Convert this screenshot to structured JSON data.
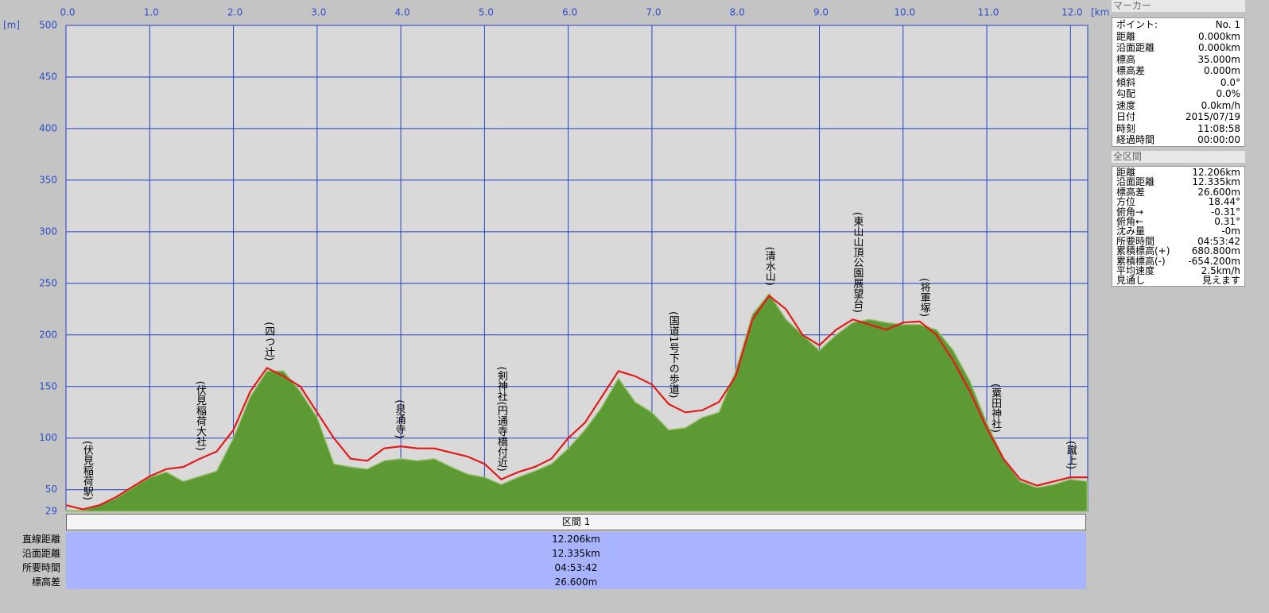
{
  "chart_data": {
    "type": "area",
    "y_unit": "[m]",
    "x_unit": "[km]",
    "x": [
      0,
      0.2,
      0.4,
      0.6,
      0.8,
      1.0,
      1.2,
      1.4,
      1.6,
      1.8,
      2.0,
      2.2,
      2.4,
      2.6,
      2.8,
      3.0,
      3.2,
      3.4,
      3.6,
      3.8,
      4.0,
      4.2,
      4.4,
      4.6,
      4.8,
      5.0,
      5.2,
      5.4,
      5.6,
      5.8,
      6.0,
      6.2,
      6.4,
      6.6,
      6.8,
      7.0,
      7.2,
      7.4,
      7.6,
      7.8,
      8.0,
      8.2,
      8.4,
      8.6,
      8.8,
      9.0,
      9.2,
      9.4,
      9.6,
      9.8,
      10.0,
      10.2,
      10.4,
      10.6,
      10.8,
      11.0,
      11.2,
      11.4,
      11.6,
      11.8,
      12.0,
      12.2
    ],
    "series": [
      {
        "color": "#5e9a34",
        "values": [
          30,
          30,
          35,
          42,
          52,
          62,
          67,
          58,
          63,
          68,
          100,
          140,
          165,
          165,
          145,
          120,
          75,
          72,
          70,
          78,
          80,
          78,
          80,
          72,
          65,
          62,
          55,
          62,
          68,
          75,
          90,
          108,
          130,
          158,
          135,
          125,
          108,
          110,
          120,
          125,
          165,
          220,
          240,
          215,
          200,
          185,
          200,
          212,
          215,
          212,
          210,
          210,
          205,
          185,
          155,
          115,
          80,
          58,
          52,
          55,
          60,
          58
        ]
      },
      {
        "color": "#e41a1a",
        "values": [
          35,
          31,
          35,
          43,
          53,
          63,
          70,
          72,
          80,
          87,
          108,
          145,
          168,
          160,
          150,
          125,
          100,
          80,
          78,
          90,
          92,
          90,
          90,
          86,
          82,
          75,
          60,
          67,
          72,
          80,
          100,
          115,
          140,
          165,
          160,
          152,
          133,
          125,
          127,
          135,
          160,
          215,
          238,
          225,
          200,
          190,
          205,
          215,
          210,
          205,
          212,
          213,
          200,
          175,
          145,
          110,
          80,
          60,
          54,
          58,
          62,
          62
        ]
      }
    ],
    "annotations": [
      {
        "text": "(伏見稲荷駅)",
        "x": 0.25
      },
      {
        "text": "(伏見稲荷大社)",
        "x": 1.6
      },
      {
        "text": "(四つ辻)",
        "x": 2.42
      },
      {
        "text": "(泉涌寺)",
        "x": 3.98
      },
      {
        "text": "(剣神社(円通寺橋付近)",
        "x": 5.2
      },
      {
        "text": "(国道1号下の歩道)",
        "x": 7.25
      },
      {
        "text": "(清水山)",
        "x": 8.4
      },
      {
        "text": "(東山山頂公園展望台)",
        "x": 9.45
      },
      {
        "text": "(将軍塚)",
        "x": 10.25
      },
      {
        "text": "(粟田神社)",
        "x": 11.1
      },
      {
        "text": "(蹴上)",
        "x": 12.0
      }
    ],
    "xlim": [
      0,
      12.206
    ],
    "ylim": [
      29,
      500
    ],
    "xticks": [
      {
        "value": 0,
        "label": "0.0"
      },
      {
        "value": 1,
        "label": "1.0"
      },
      {
        "value": 2,
        "label": "2.0"
      },
      {
        "value": 3,
        "label": "3.0"
      },
      {
        "value": 4,
        "label": "4.0"
      },
      {
        "value": 5,
        "label": "5.0"
      },
      {
        "value": 6,
        "label": "6.0"
      },
      {
        "value": 7,
        "label": "7.0"
      },
      {
        "value": 8,
        "label": "8.0"
      },
      {
        "value": 9,
        "label": "9.0"
      },
      {
        "value": 10,
        "label": "10.0"
      },
      {
        "value": 11,
        "label": "11.0"
      },
      {
        "value": 12,
        "label": "12.0"
      }
    ],
    "yticks": [
      29,
      50,
      100,
      150,
      200,
      250,
      300,
      350,
      400,
      450,
      500
    ],
    "grid": true
  },
  "marker": {
    "title": "マーカー",
    "rows": [
      [
        "ポイント:",
        "No. 1"
      ],
      [
        "距離",
        "0.000km"
      ],
      [
        "沿面距離",
        "0.000km"
      ],
      [
        "標高",
        "35.000m"
      ],
      [
        "標高差",
        "0.000m"
      ],
      [
        "傾斜",
        "0.0°"
      ],
      [
        "勾配",
        "0.0%"
      ],
      [
        "速度",
        "0.0km/h"
      ],
      [
        "日付",
        "2015/07/19"
      ],
      [
        "時刻",
        "11:08:58"
      ],
      [
        "経過時間",
        "00:00:00"
      ]
    ]
  },
  "total": {
    "title": "全区間",
    "rows": [
      [
        "距離",
        "12.206km"
      ],
      [
        "沿面距離",
        "12.335km"
      ],
      [
        "標高差",
        "26.600m"
      ],
      [
        "方位",
        "18.44°"
      ],
      [
        "俯角→",
        "-0.31°"
      ],
      [
        "俯角←",
        "0.31°"
      ],
      [
        "沈み量",
        "-0m"
      ],
      [
        "所要時間",
        "04:53:42"
      ],
      [
        "累積標高(+)",
        "680.800m"
      ],
      [
        "累積標高(-)",
        "-654.200m"
      ],
      [
        "平均速度",
        "2.5km/h"
      ],
      [
        "見通し",
        "見えます"
      ]
    ]
  },
  "section": {
    "title": "区間 1",
    "rows": [
      [
        "直線距離",
        "12.206km"
      ],
      [
        "沿面距離",
        "12.335km"
      ],
      [
        "所要時間",
        "04:53:42"
      ],
      [
        "標高差",
        "26.600m"
      ]
    ]
  }
}
